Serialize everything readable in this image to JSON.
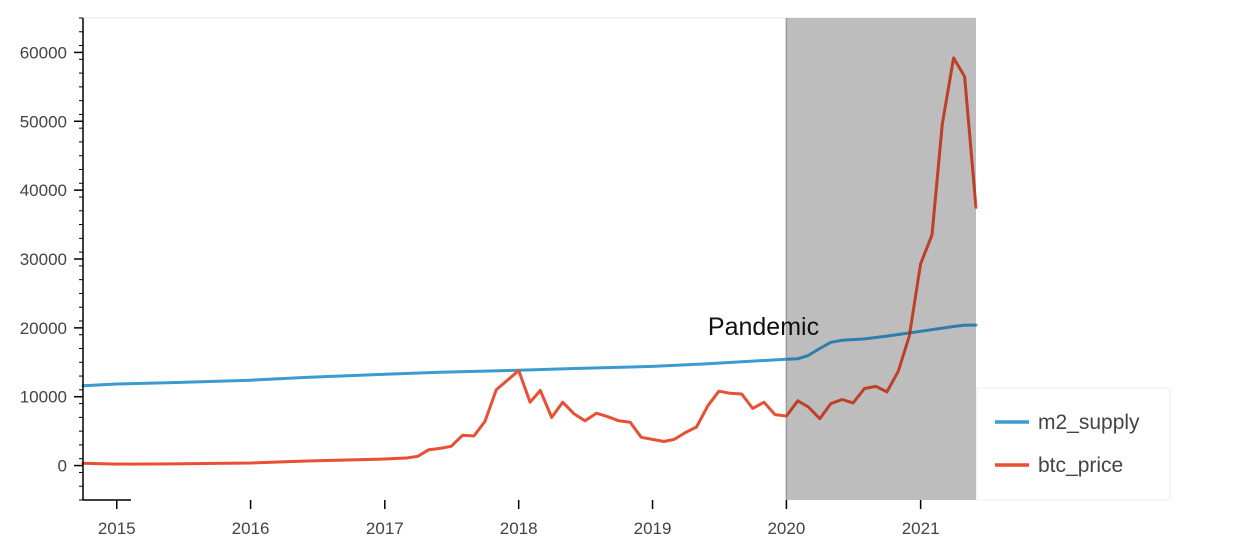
{
  "chart_data": {
    "type": "line",
    "x_range": [
      "2014-10-01",
      "2021-06-01"
    ],
    "ylim": [
      -5000,
      65000
    ],
    "y_ticks": [
      0,
      10000,
      20000,
      30000,
      40000,
      50000,
      60000
    ],
    "x_ticks": [
      "2015",
      "2016",
      "2017",
      "2018",
      "2019",
      "2020",
      "2021"
    ],
    "grid": false,
    "legend_position": "bottom-right",
    "shaded_region": {
      "start": "2020-01-01",
      "end": "2021-06-01",
      "color": "#bdbdbd"
    },
    "annotation": {
      "text": "Pandemic",
      "x": "2019-06-01",
      "y": 20000
    },
    "series": [
      {
        "name": "m2_supply",
        "color": "#3a9bd0",
        "points": [
          [
            "2014-10-01",
            11600
          ],
          [
            "2015-01-01",
            11850
          ],
          [
            "2015-06-01",
            12050
          ],
          [
            "2016-01-01",
            12400
          ],
          [
            "2016-06-01",
            12800
          ],
          [
            "2017-01-01",
            13250
          ],
          [
            "2017-06-01",
            13550
          ],
          [
            "2018-01-01",
            13850
          ],
          [
            "2018-06-01",
            14100
          ],
          [
            "2019-01-01",
            14400
          ],
          [
            "2019-06-01",
            14800
          ],
          [
            "2020-01-01",
            15450
          ],
          [
            "2020-02-01",
            15500
          ],
          [
            "2020-03-01",
            16000
          ],
          [
            "2020-04-01",
            17000
          ],
          [
            "2020-05-01",
            17900
          ],
          [
            "2020-06-01",
            18200
          ],
          [
            "2020-08-01",
            18400
          ],
          [
            "2020-10-01",
            18800
          ],
          [
            "2021-01-01",
            19500
          ],
          [
            "2021-04-01",
            20200
          ],
          [
            "2021-05-01",
            20400
          ],
          [
            "2021-06-01",
            20400
          ]
        ]
      },
      {
        "name": "btc_price",
        "color": "#e94f33",
        "points": [
          [
            "2014-10-01",
            350
          ],
          [
            "2015-01-01",
            220
          ],
          [
            "2015-06-01",
            250
          ],
          [
            "2016-01-01",
            370
          ],
          [
            "2016-06-01",
            670
          ],
          [
            "2017-01-01",
            960
          ],
          [
            "2017-03-01",
            1100
          ],
          [
            "2017-04-01",
            1350
          ],
          [
            "2017-05-01",
            2300
          ],
          [
            "2017-06-01",
            2500
          ],
          [
            "2017-07-01",
            2800
          ],
          [
            "2017-08-01",
            4400
          ],
          [
            "2017-09-01",
            4300
          ],
          [
            "2017-10-01",
            6400
          ],
          [
            "2017-11-01",
            11000
          ],
          [
            "2018-01-01",
            13800
          ],
          [
            "2018-02-01",
            9200
          ],
          [
            "2018-03-01",
            10900
          ],
          [
            "2018-04-01",
            7000
          ],
          [
            "2018-05-01",
            9200
          ],
          [
            "2018-06-01",
            7500
          ],
          [
            "2018-07-01",
            6500
          ],
          [
            "2018-08-01",
            7600
          ],
          [
            "2018-09-01",
            7100
          ],
          [
            "2018-10-01",
            6500
          ],
          [
            "2018-11-01",
            6300
          ],
          [
            "2018-12-01",
            4100
          ],
          [
            "2019-02-01",
            3500
          ],
          [
            "2019-03-01",
            3800
          ],
          [
            "2019-04-01",
            4800
          ],
          [
            "2019-05-01",
            5600
          ],
          [
            "2019-06-01",
            8700
          ],
          [
            "2019-07-01",
            10800
          ],
          [
            "2019-08-01",
            10500
          ],
          [
            "2019-09-01",
            10400
          ],
          [
            "2019-10-01",
            8300
          ],
          [
            "2019-11-01",
            9200
          ],
          [
            "2019-12-01",
            7400
          ],
          [
            "2020-01-01",
            7200
          ],
          [
            "2020-02-01",
            9400
          ],
          [
            "2020-03-01",
            8500
          ],
          [
            "2020-04-01",
            6800
          ],
          [
            "2020-05-01",
            9000
          ],
          [
            "2020-06-01",
            9600
          ],
          [
            "2020-07-01",
            9100
          ],
          [
            "2020-08-01",
            11200
          ],
          [
            "2020-09-01",
            11500
          ],
          [
            "2020-10-01",
            10700
          ],
          [
            "2020-11-01",
            13700
          ],
          [
            "2020-12-01",
            18800
          ],
          [
            "2021-01-01",
            29300
          ],
          [
            "2021-02-01",
            33500
          ],
          [
            "2021-03-01",
            49600
          ],
          [
            "2021-04-01",
            59200
          ],
          [
            "2021-05-01",
            56500
          ],
          [
            "2021-06-01",
            37500
          ]
        ]
      }
    ]
  }
}
